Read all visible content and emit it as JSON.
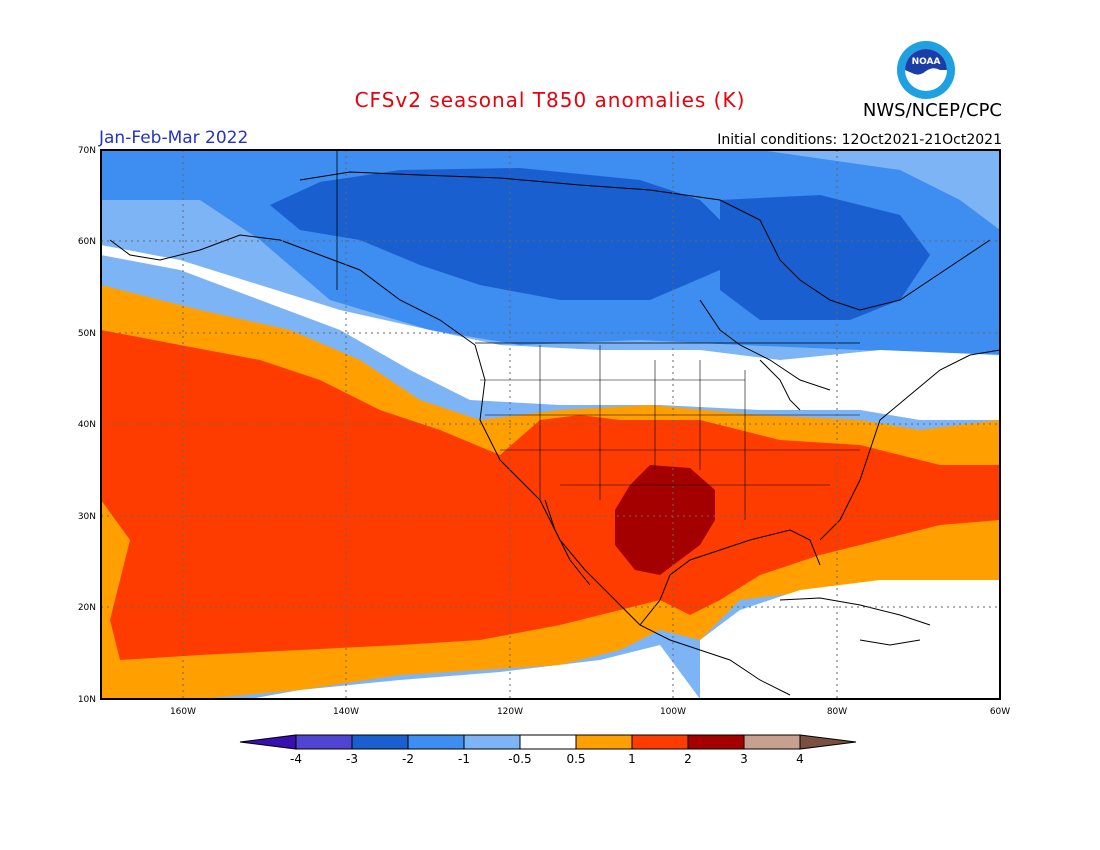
{
  "header": {
    "title": "CFSv2 seasonal T850 anomalies (K)",
    "agency": "NWS/NCEP/CPC",
    "period": "Jan-Feb-Mar 2022",
    "initial_conditions": "Initial conditions: 12Oct2021-21Oct2021",
    "logo_text": "NOAA"
  },
  "map": {
    "lat_range": [
      10,
      70
    ],
    "lon_range": [
      -170,
      -60
    ],
    "lat_ticks": [
      "10N",
      "20N",
      "30N",
      "40N",
      "50N",
      "60N",
      "70N"
    ],
    "lon_ticks": [
      "160W",
      "140W",
      "120W",
      "100W",
      "80W",
      "60W"
    ]
  },
  "colorbar": {
    "labels": [
      "-4",
      "-3",
      "-2",
      "-1",
      "-0.5",
      "0.5",
      "1",
      "2",
      "3",
      "4"
    ],
    "colors": [
      "#3a0fb0",
      "#5045d2",
      "#1a5fd0",
      "#3d8ef0",
      "#7db4f5",
      "#ffffff",
      "#ffa000",
      "#ff3c00",
      "#a50000",
      "#c8a090",
      "#7a5040"
    ]
  }
}
